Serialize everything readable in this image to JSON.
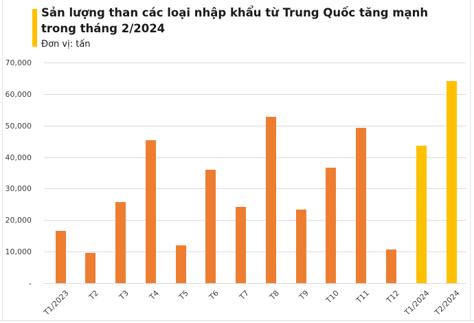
{
  "header": {
    "title_lines": [
      "Sản lượng than các loại nhập khẩu từ Trung Quốc tăng mạnh",
      "trong tháng 2/2024"
    ],
    "unit": "Đơn vị: tấn"
  },
  "colors": {
    "accent": "#FFC000",
    "bar_default": "#ED7D31",
    "bar_highlight": "#FFC000",
    "gridline": "#D9D9D9",
    "axis_text": "#3D3D3D"
  },
  "chart_data": {
    "type": "bar",
    "title": "Sản lượng than các loại nhập khẩu từ Trung Quốc tăng mạnh trong tháng 2/2024",
    "subtitle": "Đơn vị: tấn",
    "xlabel": "",
    "ylabel": "tấn",
    "categories": [
      "T1/2023",
      "T2",
      "T3",
      "T4",
      "T5",
      "T6",
      "T7",
      "T8",
      "T9",
      "T10",
      "T11",
      "T12",
      "T1/2024",
      "T2/2024"
    ],
    "values": [
      16500,
      9600,
      25700,
      45300,
      11900,
      35900,
      24300,
      52700,
      23400,
      36700,
      49300,
      10700,
      43700,
      64100
    ],
    "highlight_indices": [
      12,
      13
    ],
    "ylim": [
      0,
      70000
    ],
    "ytick_step": 10000,
    "ytick_labels": [
      "-",
      "10,000",
      "20,000",
      "30,000",
      "40,000",
      "50,000",
      "60,000",
      "70,000"
    ],
    "grid": true,
    "legend": false
  }
}
